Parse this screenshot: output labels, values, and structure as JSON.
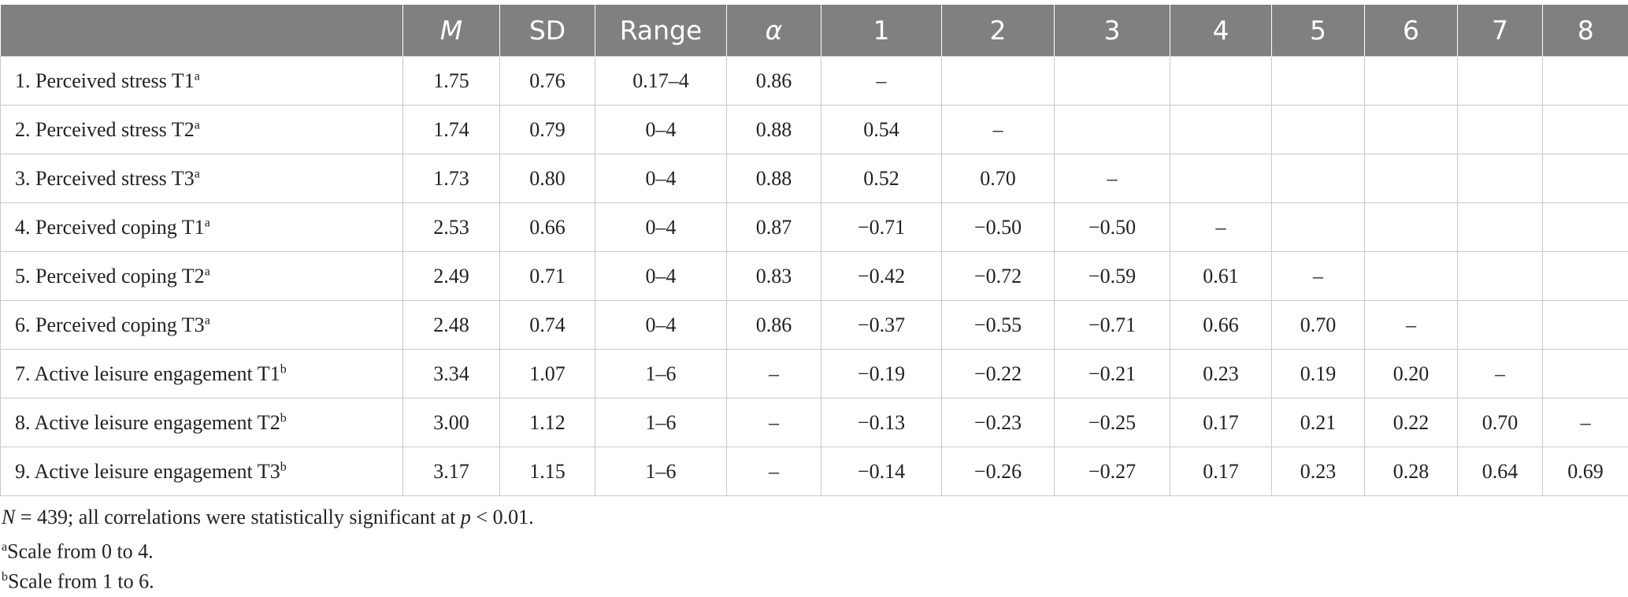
{
  "table": {
    "header": {
      "variable": "",
      "mean": "M",
      "sd": "SD",
      "range": "Range",
      "alpha": "α",
      "c1": "1",
      "c2": "2",
      "c3": "3",
      "c4": "4",
      "c5": "5",
      "c6": "6",
      "c7": "7",
      "c8": "8"
    },
    "rows": [
      {
        "label": "1. Perceived stress T1",
        "sup": "a",
        "mean": "1.75",
        "sd": "0.76",
        "range": "0.17–4",
        "alpha": "0.86",
        "c1": "–",
        "c2": "",
        "c3": "",
        "c4": "",
        "c5": "",
        "c6": "",
        "c7": "",
        "c8": ""
      },
      {
        "label": "2. Perceived stress T2",
        "sup": "a",
        "mean": "1.74",
        "sd": "0.79",
        "range": "0–4",
        "alpha": "0.88",
        "c1": "0.54",
        "c2": "–",
        "c3": "",
        "c4": "",
        "c5": "",
        "c6": "",
        "c7": "",
        "c8": ""
      },
      {
        "label": "3. Perceived stress T3",
        "sup": "a",
        "mean": "1.73",
        "sd": "0.80",
        "range": "0–4",
        "alpha": "0.88",
        "c1": "0.52",
        "c2": "0.70",
        "c3": "–",
        "c4": "",
        "c5": "",
        "c6": "",
        "c7": "",
        "c8": ""
      },
      {
        "label": "4. Perceived coping T1",
        "sup": "a",
        "mean": "2.53",
        "sd": "0.66",
        "range": "0–4",
        "alpha": "0.87",
        "c1": "−0.71",
        "c2": "−0.50",
        "c3": "−0.50",
        "c4": "–",
        "c5": "",
        "c6": "",
        "c7": "",
        "c8": ""
      },
      {
        "label": "5. Perceived coping T2",
        "sup": "a",
        "mean": "2.49",
        "sd": "0.71",
        "range": "0–4",
        "alpha": "0.83",
        "c1": "−0.42",
        "c2": "−0.72",
        "c3": "−0.59",
        "c4": "0.61",
        "c5": "–",
        "c6": "",
        "c7": "",
        "c8": ""
      },
      {
        "label": "6. Perceived coping T3",
        "sup": "a",
        "mean": "2.48",
        "sd": "0.74",
        "range": "0–4",
        "alpha": "0.86",
        "c1": "−0.37",
        "c2": "−0.55",
        "c3": "−0.71",
        "c4": "0.66",
        "c5": "0.70",
        "c6": "–",
        "c7": "",
        "c8": ""
      },
      {
        "label": "7. Active leisure engagement T1",
        "sup": "b",
        "mean": "3.34",
        "sd": "1.07",
        "range": "1–6",
        "alpha": "–",
        "c1": "−0.19",
        "c2": "−0.22",
        "c3": "−0.21",
        "c4": "0.23",
        "c5": "0.19",
        "c6": "0.20",
        "c7": "–",
        "c8": ""
      },
      {
        "label": "8. Active leisure engagement T2",
        "sup": "b",
        "mean": "3.00",
        "sd": "1.12",
        "range": "1–6",
        "alpha": "–",
        "c1": "−0.13",
        "c2": "−0.23",
        "c3": "−0.25",
        "c4": "0.17",
        "c5": "0.21",
        "c6": "0.22",
        "c7": "0.70",
        "c8": "–"
      },
      {
        "label": "9. Active leisure engagement T3",
        "sup": "b",
        "mean": "3.17",
        "sd": "1.15",
        "range": "1–6",
        "alpha": "–",
        "c1": "−0.14",
        "c2": "−0.26",
        "c3": "−0.27",
        "c4": "0.17",
        "c5": "0.23",
        "c6": "0.28",
        "c7": "0.64",
        "c8": "0.69"
      }
    ]
  },
  "notes": {
    "n_label": "N",
    "n_text": " = 439; all correlations were statistically significant at ",
    "p_label": "p",
    "p_text": " < 0.01.",
    "a_sup": "a",
    "a_text": "Scale from 0 to 4.",
    "b_sup": "b",
    "b_text": "Scale from 1 to 6."
  }
}
